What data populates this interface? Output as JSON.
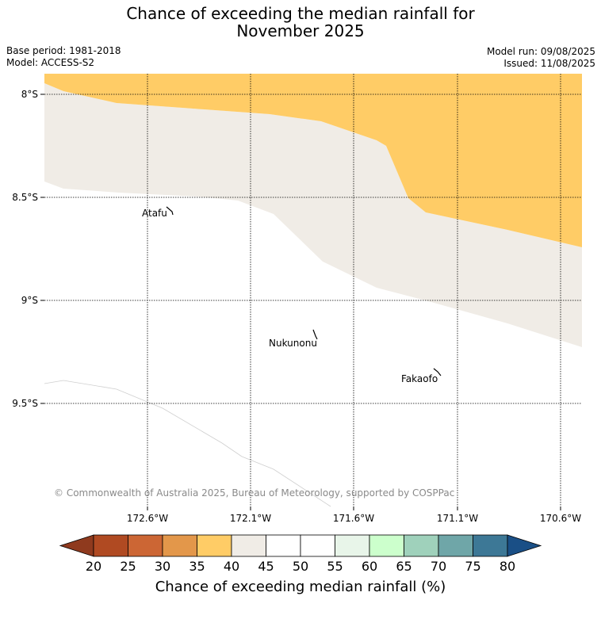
{
  "title_line1": "Chance of exceeding the median rainfall for",
  "title_line2": "November 2025",
  "base_period": "Base period: 1981-2018",
  "model": "Model: ACCESS-S2",
  "model_run": "Model run: 09/08/2025",
  "issued": "Issued: 11/08/2025",
  "lat_labels": [
    "8°S",
    "8.5°S",
    "9°S",
    "9.5°S"
  ],
  "lon_labels": [
    "172.6°W",
    "172.1°W",
    "171.6°W",
    "171.1°W",
    "170.6°W"
  ],
  "places": [
    "Atafu",
    "Nukunonu",
    "Fakaofo"
  ],
  "copyright": "© Commonwealth of Australia 2025, Bureau of Meteorology, supported by COSPPac",
  "colorbar": {
    "ticks": [
      "20",
      "25",
      "30",
      "35",
      "40",
      "45",
      "50",
      "55",
      "60",
      "65",
      "70",
      "75",
      "80"
    ],
    "colors": [
      "#8f3a1e",
      "#b04a22",
      "#cc6634",
      "#e3974a",
      "#ffcc66",
      "#f0ece6",
      "#ffffff",
      "#ffffff",
      "#e8f5e9",
      "#ccffcc",
      "#9fd1bb",
      "#6fa6a8",
      "#3d7896",
      "#1a4f86"
    ],
    "label": "Chance of exceeding median rainfall (%)"
  }
}
